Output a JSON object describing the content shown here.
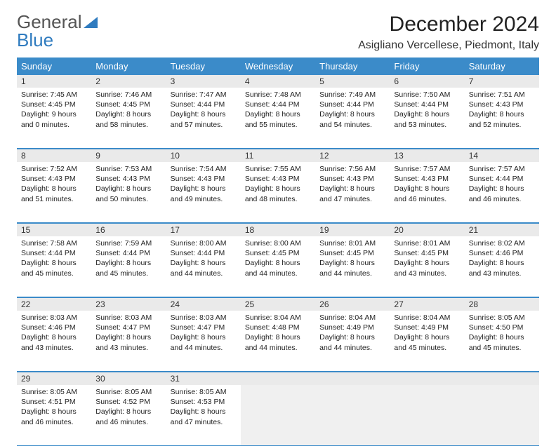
{
  "logo": {
    "text1": "General",
    "text2": "Blue"
  },
  "title": "December 2024",
  "location": "Asigliano Vercellese, Piedmont, Italy",
  "colors": {
    "header_bg": "#3b8bc9",
    "header_fg": "#ffffff",
    "daynum_bg": "#eaeaea",
    "border": "#3b8bc9",
    "empty_bg": "#f0f0f0"
  },
  "day_names": [
    "Sunday",
    "Monday",
    "Tuesday",
    "Wednesday",
    "Thursday",
    "Friday",
    "Saturday"
  ],
  "weeks": [
    {
      "nums": [
        "1",
        "2",
        "3",
        "4",
        "5",
        "6",
        "7"
      ],
      "cells": [
        {
          "sunrise": "7:45 AM",
          "sunset": "4:45 PM",
          "dlh": "9",
          "dlm": "0"
        },
        {
          "sunrise": "7:46 AM",
          "sunset": "4:45 PM",
          "dlh": "8",
          "dlm": "58"
        },
        {
          "sunrise": "7:47 AM",
          "sunset": "4:44 PM",
          "dlh": "8",
          "dlm": "57"
        },
        {
          "sunrise": "7:48 AM",
          "sunset": "4:44 PM",
          "dlh": "8",
          "dlm": "55"
        },
        {
          "sunrise": "7:49 AM",
          "sunset": "4:44 PM",
          "dlh": "8",
          "dlm": "54"
        },
        {
          "sunrise": "7:50 AM",
          "sunset": "4:44 PM",
          "dlh": "8",
          "dlm": "53"
        },
        {
          "sunrise": "7:51 AM",
          "sunset": "4:43 PM",
          "dlh": "8",
          "dlm": "52"
        }
      ]
    },
    {
      "nums": [
        "8",
        "9",
        "10",
        "11",
        "12",
        "13",
        "14"
      ],
      "cells": [
        {
          "sunrise": "7:52 AM",
          "sunset": "4:43 PM",
          "dlh": "8",
          "dlm": "51"
        },
        {
          "sunrise": "7:53 AM",
          "sunset": "4:43 PM",
          "dlh": "8",
          "dlm": "50"
        },
        {
          "sunrise": "7:54 AM",
          "sunset": "4:43 PM",
          "dlh": "8",
          "dlm": "49"
        },
        {
          "sunrise": "7:55 AM",
          "sunset": "4:43 PM",
          "dlh": "8",
          "dlm": "48"
        },
        {
          "sunrise": "7:56 AM",
          "sunset": "4:43 PM",
          "dlh": "8",
          "dlm": "47"
        },
        {
          "sunrise": "7:57 AM",
          "sunset": "4:43 PM",
          "dlh": "8",
          "dlm": "46"
        },
        {
          "sunrise": "7:57 AM",
          "sunset": "4:44 PM",
          "dlh": "8",
          "dlm": "46"
        }
      ]
    },
    {
      "nums": [
        "15",
        "16",
        "17",
        "18",
        "19",
        "20",
        "21"
      ],
      "cells": [
        {
          "sunrise": "7:58 AM",
          "sunset": "4:44 PM",
          "dlh": "8",
          "dlm": "45"
        },
        {
          "sunrise": "7:59 AM",
          "sunset": "4:44 PM",
          "dlh": "8",
          "dlm": "45"
        },
        {
          "sunrise": "8:00 AM",
          "sunset": "4:44 PM",
          "dlh": "8",
          "dlm": "44"
        },
        {
          "sunrise": "8:00 AM",
          "sunset": "4:45 PM",
          "dlh": "8",
          "dlm": "44"
        },
        {
          "sunrise": "8:01 AM",
          "sunset": "4:45 PM",
          "dlh": "8",
          "dlm": "44"
        },
        {
          "sunrise": "8:01 AM",
          "sunset": "4:45 PM",
          "dlh": "8",
          "dlm": "43"
        },
        {
          "sunrise": "8:02 AM",
          "sunset": "4:46 PM",
          "dlh": "8",
          "dlm": "43"
        }
      ]
    },
    {
      "nums": [
        "22",
        "23",
        "24",
        "25",
        "26",
        "27",
        "28"
      ],
      "cells": [
        {
          "sunrise": "8:03 AM",
          "sunset": "4:46 PM",
          "dlh": "8",
          "dlm": "43"
        },
        {
          "sunrise": "8:03 AM",
          "sunset": "4:47 PM",
          "dlh": "8",
          "dlm": "43"
        },
        {
          "sunrise": "8:03 AM",
          "sunset": "4:47 PM",
          "dlh": "8",
          "dlm": "44"
        },
        {
          "sunrise": "8:04 AM",
          "sunset": "4:48 PM",
          "dlh": "8",
          "dlm": "44"
        },
        {
          "sunrise": "8:04 AM",
          "sunset": "4:49 PM",
          "dlh": "8",
          "dlm": "44"
        },
        {
          "sunrise": "8:04 AM",
          "sunset": "4:49 PM",
          "dlh": "8",
          "dlm": "45"
        },
        {
          "sunrise": "8:05 AM",
          "sunset": "4:50 PM",
          "dlh": "8",
          "dlm": "45"
        }
      ]
    },
    {
      "nums": [
        "29",
        "30",
        "31",
        "",
        "",
        "",
        ""
      ],
      "cells": [
        {
          "sunrise": "8:05 AM",
          "sunset": "4:51 PM",
          "dlh": "8",
          "dlm": "46"
        },
        {
          "sunrise": "8:05 AM",
          "sunset": "4:52 PM",
          "dlh": "8",
          "dlm": "46"
        },
        {
          "sunrise": "8:05 AM",
          "sunset": "4:53 PM",
          "dlh": "8",
          "dlm": "47"
        },
        null,
        null,
        null,
        null
      ]
    }
  ]
}
